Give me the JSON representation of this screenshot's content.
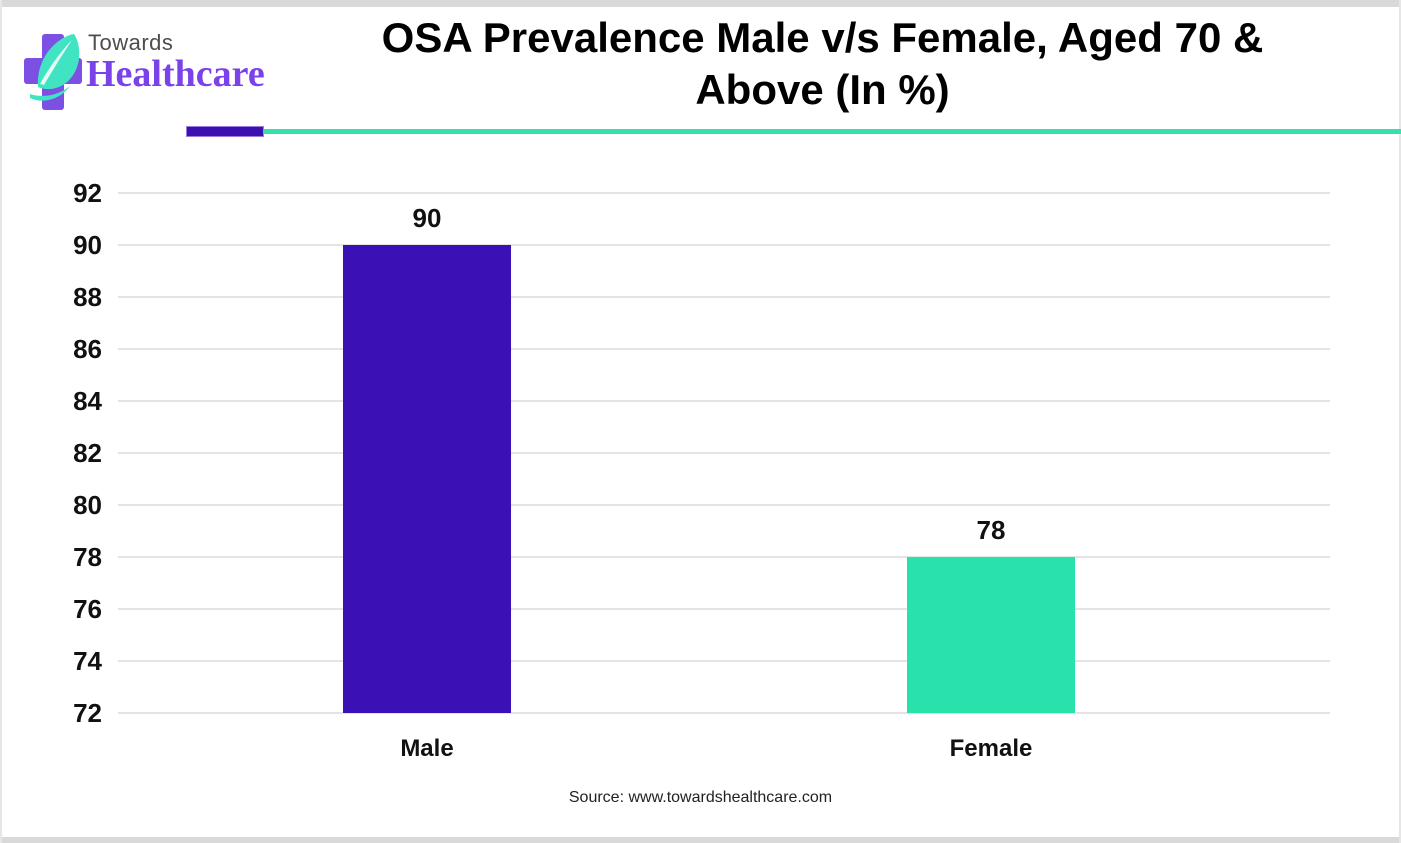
{
  "logo": {
    "brand_top": "Towards",
    "brand_bottom": "Healthcare",
    "cross_color": "#7b50e3",
    "leaf_color": "#40e4c2"
  },
  "header": {
    "title": "OSA Prevalence Male v/s Female, Aged 70 & Above (In %)",
    "title_lines": [
      "OSA Prevalence Male v/s Female, Aged 70 &",
      "Above (In %)"
    ],
    "divider_accent_color": "#3a11ae",
    "divider_rule_color": "#35dfae"
  },
  "chart_data": {
    "type": "bar",
    "title": "OSA Prevalence Male v/s Female, Aged 70 & Above (In %)",
    "categories": [
      "Male",
      "Female"
    ],
    "values": [
      90,
      78
    ],
    "bar_colors": [
      "#3b10b5",
      "#28e1ab"
    ],
    "data_labels": [
      "90",
      "78"
    ],
    "xlabel": "",
    "ylabel": "",
    "ylim": [
      72,
      92
    ],
    "ytick_step": 2,
    "yticks": [
      72,
      74,
      76,
      78,
      80,
      82,
      84,
      86,
      88,
      90,
      92
    ],
    "grid": true,
    "gridline_color": "#e4e4e4",
    "legend": false
  },
  "footer": {
    "source": "Source: www.towardshealthcare.com"
  }
}
